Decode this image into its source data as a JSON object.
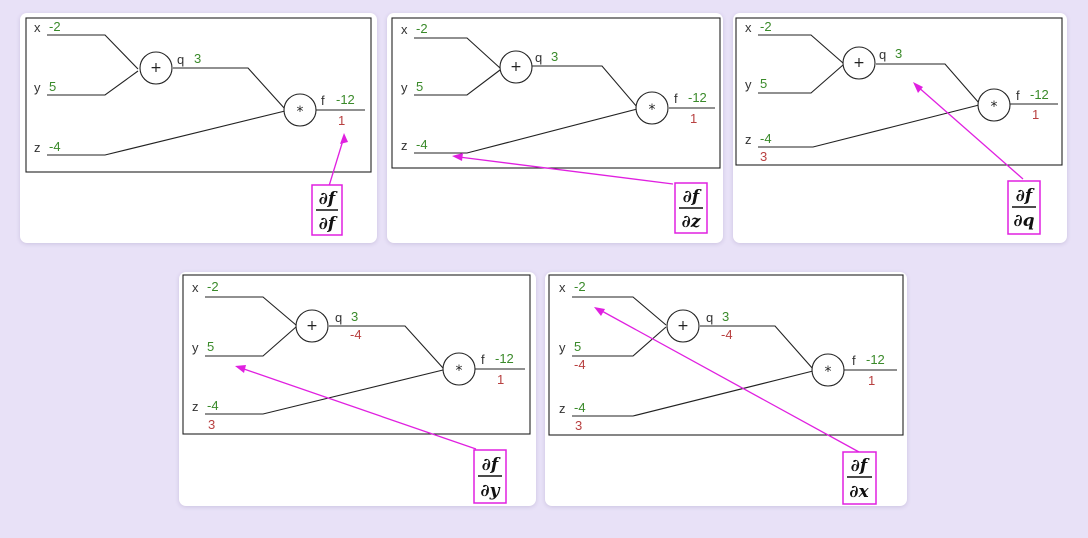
{
  "panels": [
    {
      "x": {
        "name": "x",
        "value": "-2",
        "grad": ""
      },
      "y": {
        "name": "y",
        "value": "5",
        "grad": ""
      },
      "z": {
        "name": "z",
        "value": "-4",
        "grad": ""
      },
      "q": {
        "name": "q",
        "value": "3",
        "grad": ""
      },
      "f": {
        "name": "f",
        "value": "-12",
        "grad": "1"
      },
      "add_op": "+",
      "mul_op": "*",
      "derivative": {
        "num": "∂f",
        "den": "∂f"
      }
    },
    {
      "x": {
        "name": "x",
        "value": "-2",
        "grad": ""
      },
      "y": {
        "name": "y",
        "value": "5",
        "grad": ""
      },
      "z": {
        "name": "z",
        "value": "-4",
        "grad": ""
      },
      "q": {
        "name": "q",
        "value": "3",
        "grad": ""
      },
      "f": {
        "name": "f",
        "value": "-12",
        "grad": "1"
      },
      "add_op": "+",
      "mul_op": "*",
      "derivative": {
        "num": "∂f",
        "den": "∂z"
      }
    },
    {
      "x": {
        "name": "x",
        "value": "-2",
        "grad": ""
      },
      "y": {
        "name": "y",
        "value": "5",
        "grad": ""
      },
      "z": {
        "name": "z",
        "value": "-4",
        "grad": "3"
      },
      "q": {
        "name": "q",
        "value": "3",
        "grad": ""
      },
      "f": {
        "name": "f",
        "value": "-12",
        "grad": "1"
      },
      "add_op": "+",
      "mul_op": "*",
      "derivative": {
        "num": "∂f",
        "den": "∂q"
      }
    },
    {
      "x": {
        "name": "x",
        "value": "-2",
        "grad": ""
      },
      "y": {
        "name": "y",
        "value": "5",
        "grad": ""
      },
      "z": {
        "name": "z",
        "value": "-4",
        "grad": "3"
      },
      "q": {
        "name": "q",
        "value": "3",
        "grad": "-4"
      },
      "f": {
        "name": "f",
        "value": "-12",
        "grad": "1"
      },
      "add_op": "+",
      "mul_op": "*",
      "derivative": {
        "num": "∂f",
        "den": "∂y"
      }
    },
    {
      "x": {
        "name": "x",
        "value": "-2",
        "grad": ""
      },
      "y": {
        "name": "y",
        "value": "5",
        "grad": "-4"
      },
      "z": {
        "name": "z",
        "value": "-4",
        "grad": "3"
      },
      "q": {
        "name": "q",
        "value": "3",
        "grad": "-4"
      },
      "f": {
        "name": "f",
        "value": "-12",
        "grad": "1"
      },
      "add_op": "+",
      "mul_op": "*",
      "derivative": {
        "num": "∂f",
        "den": "∂x"
      }
    }
  ]
}
